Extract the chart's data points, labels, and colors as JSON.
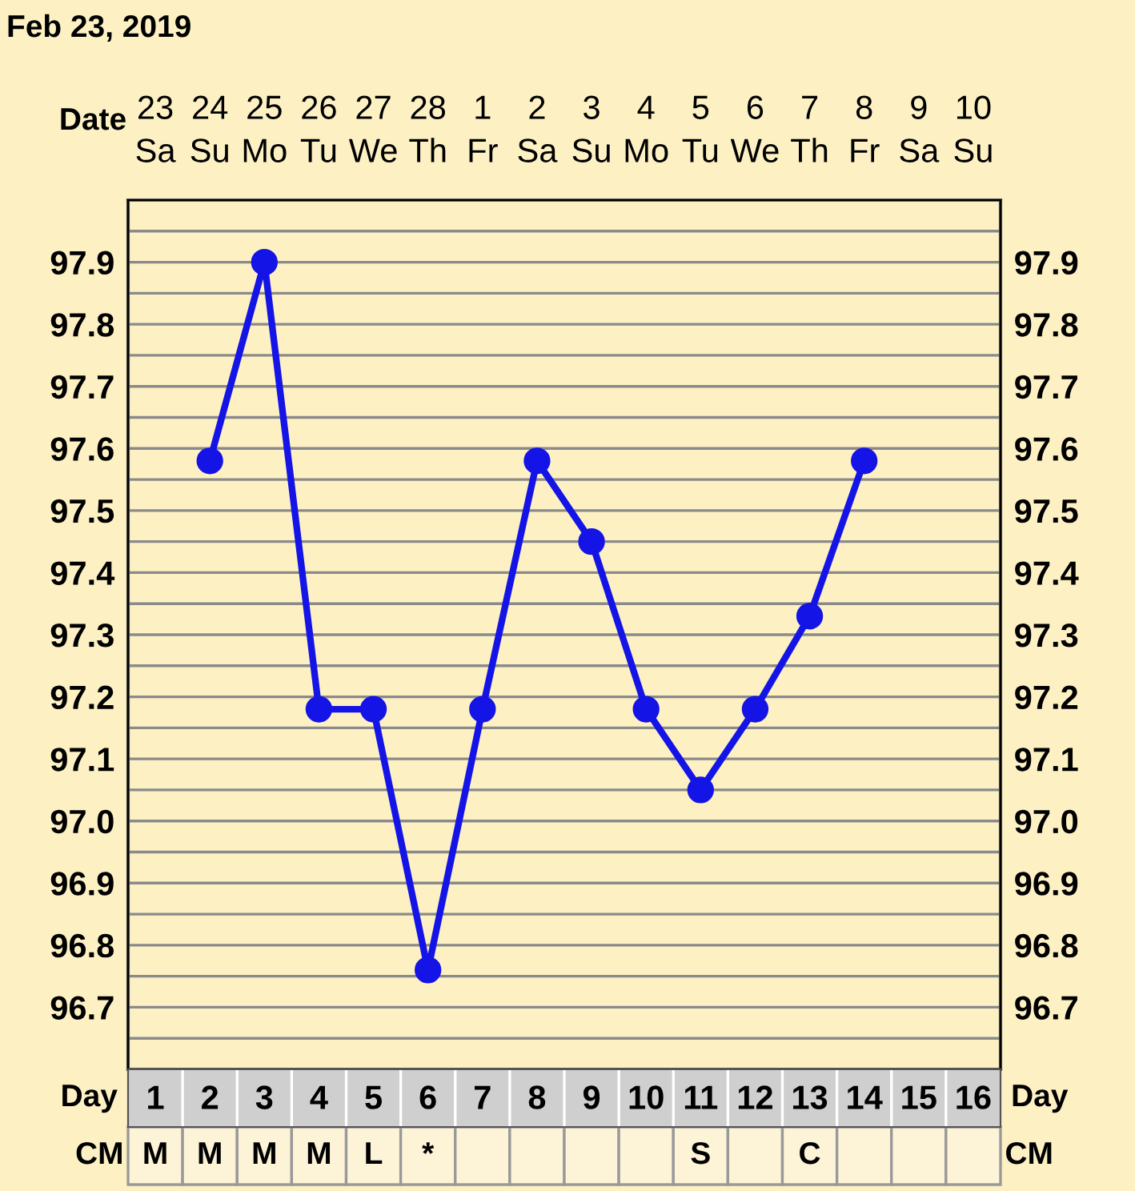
{
  "chart_data": {
    "type": "line",
    "title": "Feb 23, 2019",
    "xlabel": "Date",
    "x2label": "Day",
    "categories": [
      "23\nSa",
      "24\nSu",
      "25\nMo",
      "26\nTu",
      "27\nWe",
      "28\nTh",
      "1\nFr",
      "2\nSa",
      "3\nSu",
      "4\nMo",
      "5\nTu",
      "6\nWe",
      "7\nTh",
      "8\nFr",
      "9\nSa",
      "10\nSu"
    ],
    "x2lim": [
      0.5,
      16.5
    ],
    "x2ticks": [
      1,
      2,
      3,
      4,
      5,
      6,
      7,
      8,
      9,
      10,
      11,
      12,
      13,
      14,
      15,
      16
    ],
    "series": [
      {
        "color": "#1414e6",
        "values": [
          null,
          97.58,
          97.9,
          97.18,
          97.18,
          96.76,
          97.18,
          97.58,
          97.45,
          97.18,
          97.05,
          97.18,
          97.33,
          97.58,
          null,
          null
        ]
      }
    ],
    "ylim": [
      96.6,
      98.0
    ],
    "yticks": [
      96.7,
      96.8,
      96.9,
      {
        "value": 97.0,
        "label": "97.0"
      },
      97.1,
      97.2,
      97.3,
      97.4,
      97.5,
      97.6,
      97.7,
      97.8,
      97.9
    ],
    "y2lim": [
      96.6,
      98.0
    ],
    "y2ticks": [
      96.7,
      96.8,
      96.9,
      {
        "value": 97.0,
        "label": "97.0"
      },
      97.1,
      97.2,
      97.3,
      97.4,
      97.5,
      97.6,
      97.7,
      97.8,
      97.9
    ],
    "grid": true,
    "marker": "circle",
    "line_style": "solid",
    "annotations": [
      "CM",
      "M",
      "M",
      "M",
      "M",
      "L",
      "*",
      null,
      null,
      null,
      null,
      "S",
      null,
      "C",
      null,
      null,
      null
    ]
  }
}
